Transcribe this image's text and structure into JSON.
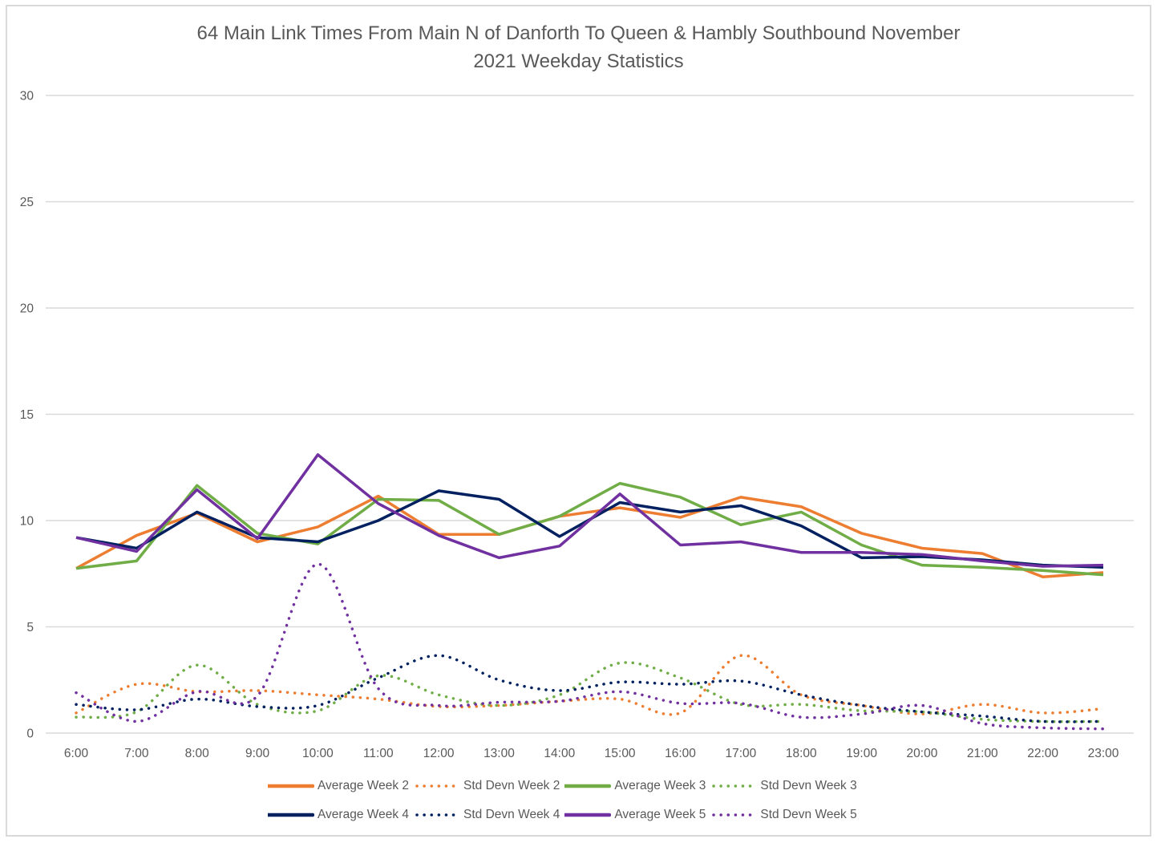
{
  "chart_data": {
    "type": "line",
    "title": "64 Main Link Times From Main N of Danforth To Queen & Hambly Southbound November 2021 Weekday Statistics",
    "title_lines": [
      "64 Main Link Times From Main N of Danforth To Queen & Hambly Southbound November",
      "2021 Weekday Statistics"
    ],
    "xlabel": "",
    "ylabel": "",
    "ylim": [
      0,
      30
    ],
    "yticks": [
      0,
      5,
      10,
      15,
      20,
      25,
      30
    ],
    "grid": true,
    "legend_position": "bottom",
    "categories": [
      "6:00",
      "7:00",
      "8:00",
      "9:00",
      "10:00",
      "11:00",
      "12:00",
      "13:00",
      "14:00",
      "15:00",
      "16:00",
      "17:00",
      "18:00",
      "19:00",
      "20:00",
      "21:00",
      "22:00",
      "23:00"
    ],
    "series": [
      {
        "name": "Average Week 2",
        "color": "#ed7d31",
        "style": "solid",
        "values": [
          7.75,
          9.3,
          10.35,
          9.0,
          9.7,
          11.15,
          9.35,
          9.35,
          10.2,
          10.6,
          10.15,
          11.1,
          10.65,
          9.4,
          8.7,
          8.45,
          7.35,
          7.55
        ]
      },
      {
        "name": "Std Devn Week 2",
        "color": "#ed7d31",
        "style": "dotted",
        "values": [
          0.95,
          2.3,
          1.95,
          2.0,
          1.8,
          1.6,
          1.25,
          1.3,
          1.5,
          1.6,
          0.95,
          3.65,
          1.8,
          1.3,
          0.9,
          1.35,
          0.95,
          1.15
        ]
      },
      {
        "name": "Average Week 3",
        "color": "#70ad47",
        "style": "solid",
        "values": [
          7.75,
          8.1,
          11.65,
          9.4,
          8.9,
          11.0,
          10.95,
          9.35,
          10.2,
          11.75,
          11.1,
          9.8,
          10.4,
          8.85,
          7.9,
          7.8,
          7.65,
          7.45
        ]
      },
      {
        "name": "Std Devn Week 3",
        "color": "#70ad47",
        "style": "dotted",
        "values": [
          0.75,
          1.0,
          3.2,
          1.35,
          1.05,
          2.7,
          1.8,
          1.3,
          1.8,
          3.3,
          2.6,
          1.35,
          1.35,
          1.05,
          1.0,
          0.65,
          0.55,
          0.55
        ]
      },
      {
        "name": "Average Week 4",
        "color": "#002060",
        "style": "solid",
        "values": [
          9.2,
          8.7,
          10.4,
          9.2,
          9.0,
          10.0,
          11.4,
          11.0,
          9.25,
          10.85,
          10.4,
          10.7,
          9.75,
          8.25,
          8.3,
          8.15,
          7.9,
          7.8
        ]
      },
      {
        "name": "Std Devn Week 4",
        "color": "#002060",
        "style": "dotted",
        "values": [
          1.35,
          1.1,
          1.6,
          1.25,
          1.3,
          2.6,
          3.65,
          2.5,
          2.0,
          2.4,
          2.3,
          2.45,
          1.8,
          1.3,
          1.0,
          0.8,
          0.55,
          0.55
        ]
      },
      {
        "name": "Average Week 5",
        "color": "#7030a0",
        "style": "solid",
        "values": [
          9.2,
          8.55,
          11.45,
          9.15,
          13.1,
          10.8,
          9.3,
          8.25,
          8.8,
          11.25,
          8.85,
          9.0,
          8.5,
          8.5,
          8.4,
          8.1,
          7.85,
          7.9
        ]
      },
      {
        "name": "Std Devn Week 5",
        "color": "#7030a0",
        "style": "dotted",
        "values": [
          1.9,
          0.55,
          1.95,
          1.75,
          7.95,
          2.1,
          1.3,
          1.45,
          1.5,
          1.95,
          1.4,
          1.4,
          0.75,
          0.9,
          1.3,
          0.45,
          0.25,
          0.2
        ]
      }
    ]
  }
}
